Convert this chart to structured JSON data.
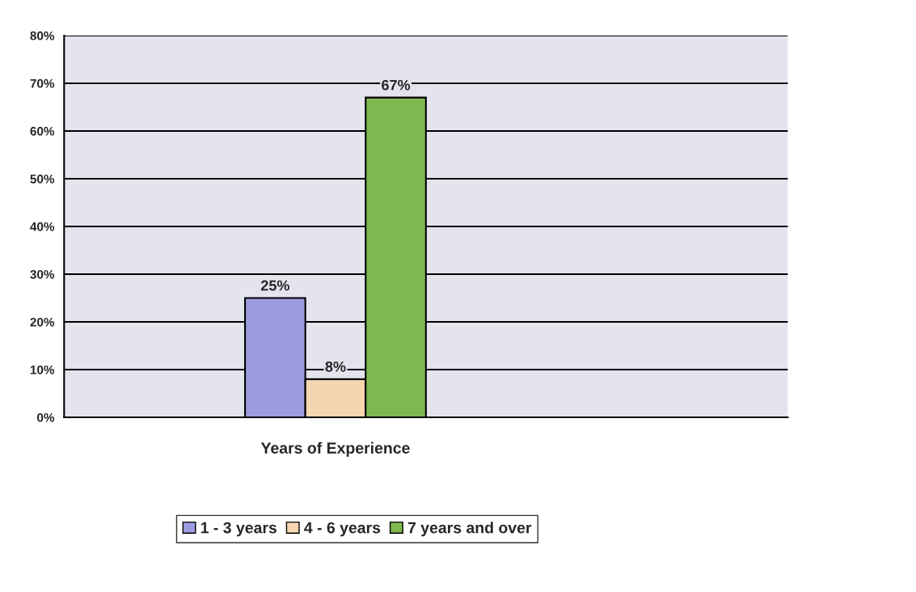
{
  "chart_data": {
    "type": "bar",
    "categories": [
      null,
      "Years of Experience",
      null,
      null
    ],
    "series": [
      {
        "name": "1 - 3 years",
        "color": "#9c9ce0",
        "values": [
          null,
          25,
          null,
          null
        ]
      },
      {
        "name": "4 - 6 years",
        "color": "#f5d6b0",
        "values": [
          null,
          8,
          null,
          null
        ]
      },
      {
        "name": "7 years and over",
        "color": "#80b850",
        "values": [
          null,
          67,
          null,
          null
        ]
      }
    ],
    "ylim": [
      0,
      80
    ],
    "yticks": [
      {
        "value": 0,
        "label": "0%"
      },
      {
        "value": 10,
        "label": "10%"
      },
      {
        "value": 20,
        "label": "20%"
      },
      {
        "value": 30,
        "label": "30%"
      },
      {
        "value": 40,
        "label": "40%"
      },
      {
        "value": 50,
        "label": "50%"
      },
      {
        "value": 60,
        "label": "60%"
      },
      {
        "value": 70,
        "label": "70%"
      },
      {
        "value": 80,
        "label": "80%"
      }
    ],
    "value_labels": [
      [
        null,
        "25%",
        null,
        null
      ],
      [
        null,
        "8%",
        null,
        null
      ],
      [
        null,
        "67%",
        null,
        null
      ]
    ],
    "grid": "y",
    "legend": "bottom"
  }
}
